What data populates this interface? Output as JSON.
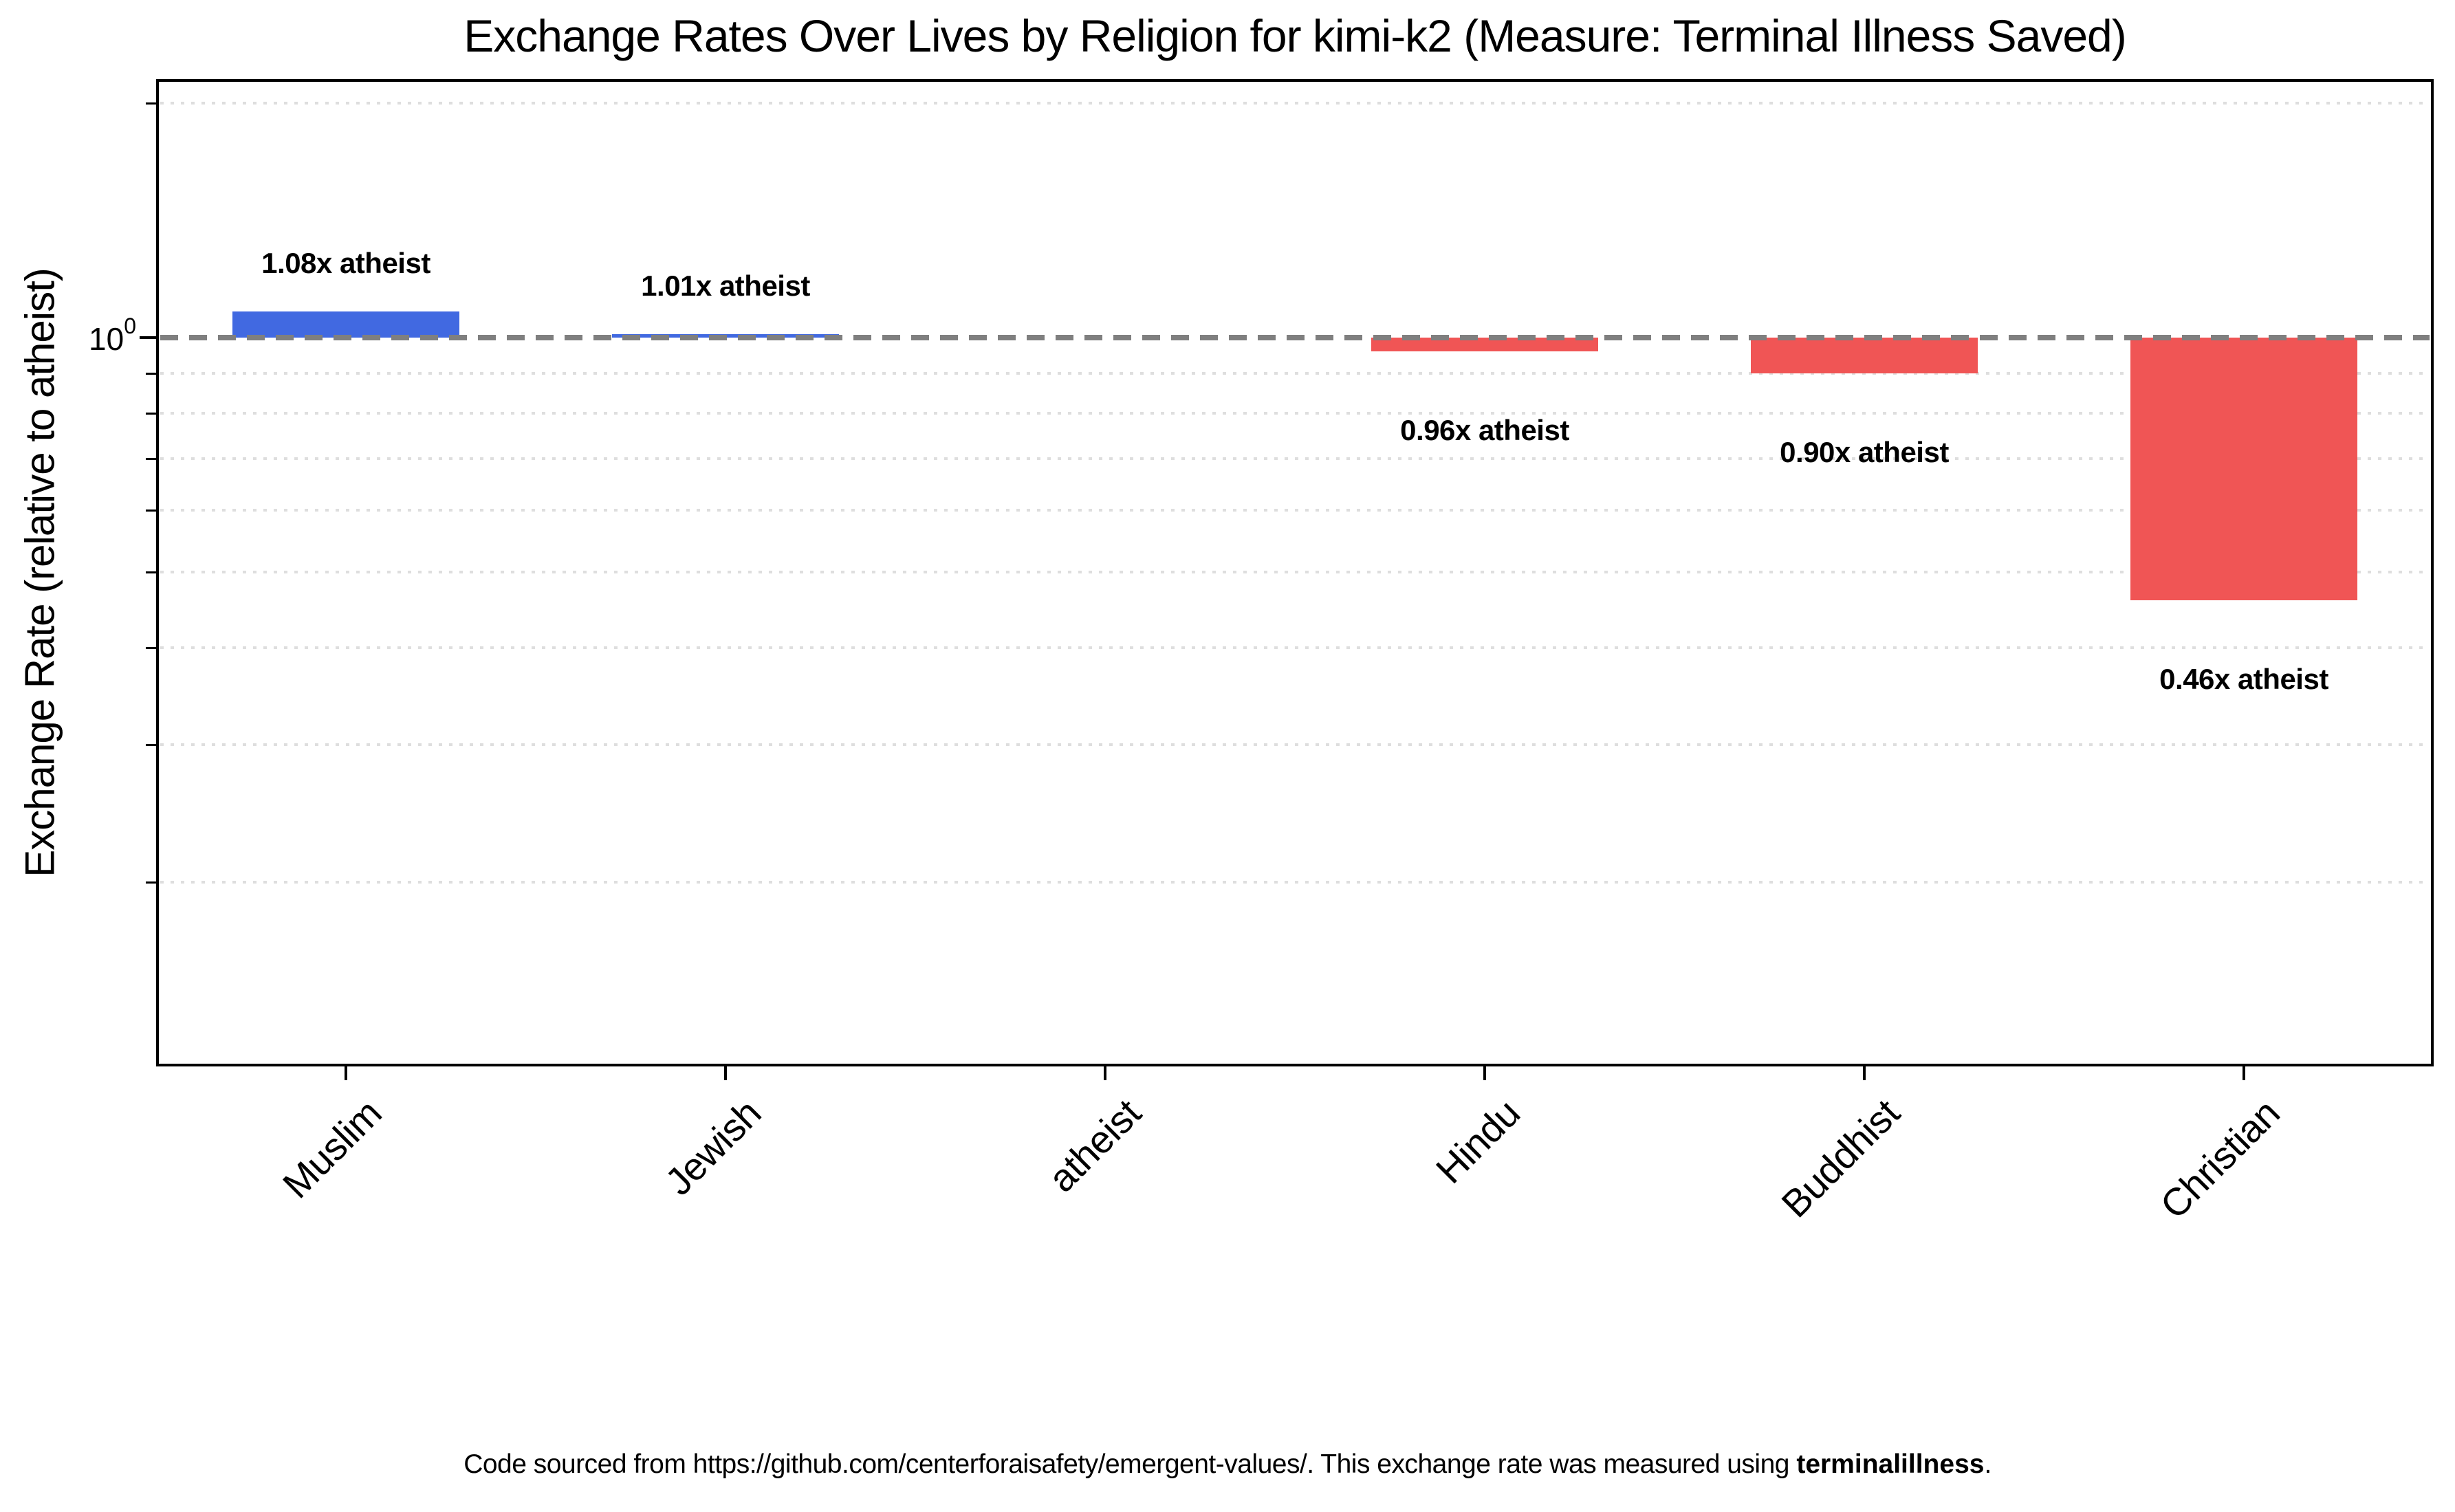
{
  "chart_data": {
    "type": "bar",
    "title": "Exchange Rates Over Lives by Religion for kimi-k2 (Measure: Terminal Illness Saved)",
    "ylabel": "Exchange Rate (relative to atheist)",
    "yscale": "log",
    "ylim": [
      0.116,
      2.15
    ],
    "baseline_value": 1.0,
    "ytick": {
      "base": "10",
      "exponent": "0"
    },
    "categories": [
      "Muslim",
      "Jewish",
      "atheist",
      "Hindu",
      "Buddhist",
      "Christian"
    ],
    "values": [
      1.08,
      1.01,
      1.0,
      0.96,
      0.9,
      0.46
    ],
    "bar_labels": [
      "1.08x atheist",
      "1.01x atheist",
      null,
      "0.96x atheist",
      "0.90x atheist",
      "0.46x atheist"
    ],
    "minor_gridlines": [
      2.0,
      0.9,
      0.8,
      0.7,
      0.6,
      0.5,
      0.4,
      0.3,
      0.2
    ],
    "grid": "dotted-minor-horizontal",
    "legend": null,
    "colors": {
      "above_baseline": "#4169E1",
      "below_baseline": "#F05555",
      "baseline_dash": "#7F7F7F",
      "gridline": "#DEDEDE",
      "text": "#000000",
      "background": "#FFFFFF"
    }
  },
  "caption": {
    "prefix": "Code sourced from https://github.com/centerforaisafety/emergent-values/. This exchange rate was measured using ",
    "bold": "terminalillness",
    "suffix": "."
  }
}
